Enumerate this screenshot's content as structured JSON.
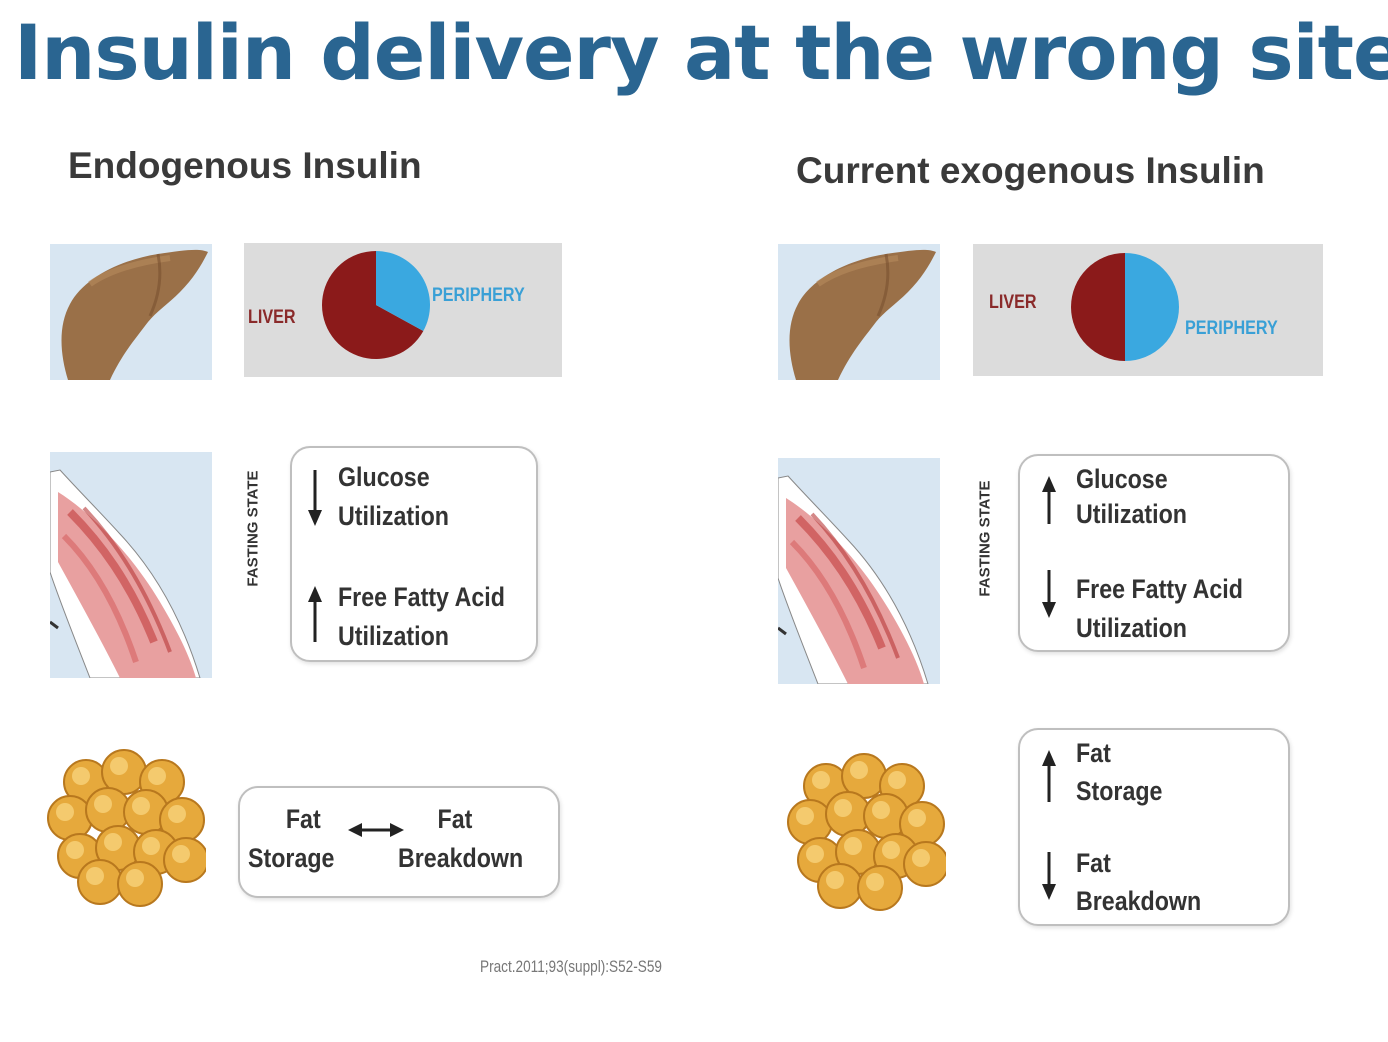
{
  "title": "Insulin delivery at the wrong site",
  "left": {
    "heading": "Endogenous Insulin",
    "pie": {
      "liver_label": "LIVER",
      "periphery_label": "PERIPHERY",
      "periphery_fraction": 0.33
    },
    "fasting_label": "FASTING STATE",
    "muscle_effects": [
      {
        "direction": "down",
        "lines": [
          "Glucose",
          "Utilization"
        ]
      },
      {
        "direction": "up",
        "lines": [
          "Free Fatty Acid",
          "Utilization"
        ]
      }
    ],
    "fat_effects": {
      "left": [
        "Fat",
        "Storage"
      ],
      "right": [
        "Fat",
        "Breakdown"
      ],
      "arrow": "both"
    }
  },
  "right": {
    "heading": "Current exogenous Insulin",
    "pie": {
      "liver_label": "LIVER",
      "periphery_label": "PERIPHERY",
      "periphery_fraction": 0.5
    },
    "fasting_label": "FASTING STATE",
    "muscle_effects": [
      {
        "direction": "up",
        "lines": [
          "Glucose",
          "Utilization"
        ]
      },
      {
        "direction": "down",
        "lines": [
          "Free Fatty Acid",
          "Utilization"
        ]
      }
    ],
    "fat_effects": [
      {
        "direction": "up",
        "lines": [
          "Fat",
          "Storage"
        ]
      },
      {
        "direction": "down",
        "lines": [
          "Fat",
          "Breakdown"
        ]
      }
    ]
  },
  "citation": "Pract.2011;93(suppl):S52-S59",
  "colors": {
    "title": "#2a6591",
    "liver": "#8b1a1a",
    "periphery": "#3aa8e0",
    "panel": "#dcdcdc",
    "tissue_bg": "#d8e6f2"
  }
}
